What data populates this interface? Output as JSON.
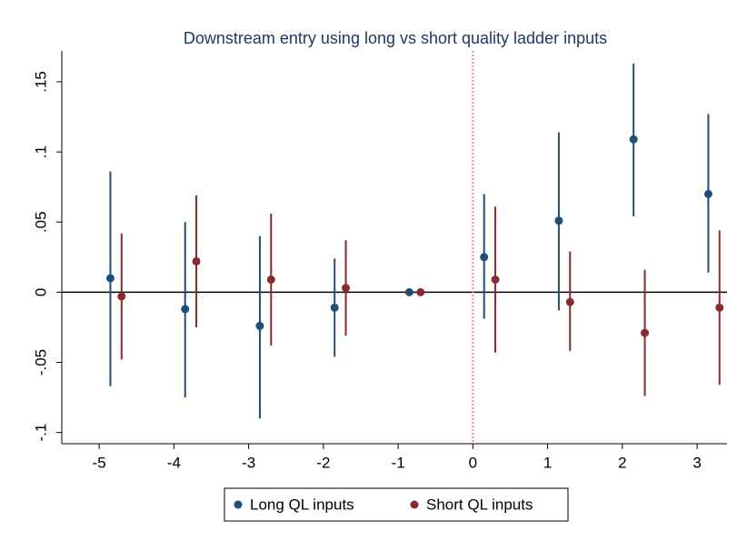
{
  "chart_data": {
    "type": "errorbar",
    "title": "Downstream entry using long vs short quality ladder inputs",
    "xlim": [
      -5.5,
      3.4
    ],
    "xticks": [
      -5,
      -4,
      -3,
      -2,
      -1,
      0,
      1,
      2,
      3
    ],
    "ylim": [
      -0.108,
      0.172
    ],
    "yticks": [
      {
        "value": -0.1,
        "label": "-.1"
      },
      {
        "value": -0.05,
        "label": "-.05"
      },
      {
        "value": 0,
        "label": "0"
      },
      {
        "value": 0.05,
        "label": ".05"
      },
      {
        "value": 0.1,
        "label": ".1"
      },
      {
        "value": 0.15,
        "label": ".15"
      }
    ],
    "reference_x": 0,
    "reference_color": "#e48aa6",
    "series": [
      {
        "name": "Long QL inputs",
        "color": "#1f4e79",
        "x": [
          -4.85,
          -3.85,
          -2.85,
          -1.85,
          -0.85,
          0.15,
          1.15,
          2.15,
          3.15
        ],
        "values": [
          0.01,
          -0.012,
          -0.024,
          -0.011,
          0,
          0.025,
          0.051,
          0.109,
          0.07
        ],
        "lower": [
          -0.067,
          -0.075,
          -0.09,
          -0.046,
          0,
          -0.019,
          -0.013,
          0.054,
          0.014
        ],
        "upper": [
          0.086,
          0.05,
          0.04,
          0.024,
          0,
          0.07,
          0.114,
          0.163,
          0.127
        ]
      },
      {
        "name": "Short QL inputs",
        "color": "#8b2a2e",
        "x": [
          -4.7,
          -3.7,
          -2.7,
          -1.7,
          -0.7,
          0.3,
          1.3,
          2.3,
          3.3
        ],
        "values": [
          -0.003,
          0.022,
          0.009,
          0.003,
          0,
          0.009,
          -0.007,
          -0.029,
          -0.011
        ],
        "lower": [
          -0.048,
          -0.025,
          -0.038,
          -0.031,
          0,
          -0.043,
          -0.042,
          -0.074,
          -0.066
        ],
        "upper": [
          0.042,
          0.069,
          0.056,
          0.037,
          0,
          0.061,
          0.029,
          0.016,
          0.044
        ]
      }
    ]
  }
}
